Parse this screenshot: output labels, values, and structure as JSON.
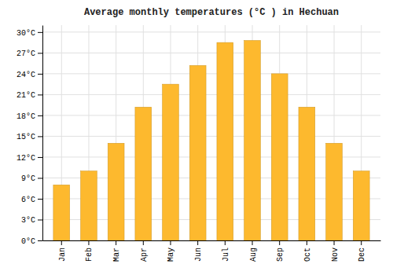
{
  "chart_data": {
    "type": "bar",
    "title": "Average monthly temperatures (°C ) in Hechuan",
    "categories": [
      "Jan",
      "Feb",
      "Mar",
      "Apr",
      "May",
      "Jun",
      "Jul",
      "Aug",
      "Sep",
      "Oct",
      "Nov",
      "Dec"
    ],
    "values": [
      8.0,
      10.0,
      14.0,
      19.2,
      22.5,
      25.2,
      28.5,
      28.8,
      24.0,
      19.2,
      14.0,
      10.0
    ],
    "color": "#FDB92E",
    "ylim": [
      0,
      31
    ],
    "yticks": [
      {
        "value": 0,
        "label": "0°C"
      },
      {
        "value": 3,
        "label": "3°C"
      },
      {
        "value": 6,
        "label": "6°C"
      },
      {
        "value": 9,
        "label": "9°C"
      },
      {
        "value": 12,
        "label": "12°C"
      },
      {
        "value": 15,
        "label": "15°C"
      },
      {
        "value": 18,
        "label": "18°C"
      },
      {
        "value": 21,
        "label": "21°C"
      },
      {
        "value": 24,
        "label": "24°C"
      },
      {
        "value": 27,
        "label": "27°C"
      },
      {
        "value": 30,
        "label": "30°C"
      }
    ],
    "grid": true
  }
}
